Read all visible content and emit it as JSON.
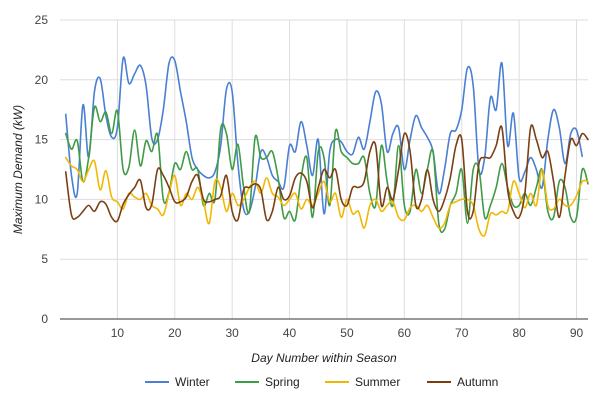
{
  "chart_data": {
    "type": "line",
    "title": "",
    "xlabel": "Day Number within Season",
    "ylabel": "Maximum Demand (kW)",
    "xlim": [
      0,
      92
    ],
    "ylim": [
      0,
      25
    ],
    "xticks": [
      10,
      20,
      30,
      40,
      50,
      60,
      70,
      80,
      90
    ],
    "yticks": [
      0,
      5,
      10,
      15,
      20,
      25
    ],
    "grid": true,
    "legend_position": "bottom",
    "x": [
      1,
      2,
      3,
      4,
      5,
      6,
      7,
      8,
      9,
      10,
      11,
      12,
      13,
      14,
      15,
      16,
      17,
      18,
      19,
      20,
      21,
      22,
      23,
      24,
      25,
      26,
      27,
      28,
      29,
      30,
      31,
      32,
      33,
      34,
      35,
      36,
      37,
      38,
      39,
      40,
      41,
      42,
      43,
      44,
      45,
      46,
      47,
      48,
      49,
      50,
      51,
      52,
      53,
      54,
      55,
      56,
      57,
      58,
      59,
      60,
      61,
      62,
      63,
      64,
      65,
      66,
      67,
      68,
      69,
      70,
      71,
      72,
      73,
      74,
      75,
      76,
      77,
      78,
      79,
      80,
      81,
      82,
      83,
      84,
      85,
      86,
      87,
      88,
      89,
      90,
      91,
      92
    ],
    "series": [
      {
        "name": "Winter",
        "color": "#4a7fd4",
        "values": [
          17.1,
          12.0,
          10.5,
          17.9,
          13.5,
          19.0,
          20.1,
          17.0,
          15.2,
          16.0,
          21.8,
          19.7,
          20.5,
          21.2,
          19.5,
          15.1,
          15.0,
          17.5,
          21.4,
          21.6,
          19.0,
          16.5,
          13.5,
          12.5,
          12.0,
          11.8,
          12.3,
          14.5,
          19.2,
          19.0,
          13.0,
          9.2,
          9.0,
          11.0,
          14.0,
          13.5,
          12.0,
          11.5,
          11.0,
          14.5,
          14.0,
          16.5,
          14.5,
          12.0,
          15.0,
          8.8,
          14.0,
          15.0,
          14.8,
          14.0,
          13.8,
          15.2,
          14.2,
          16.5,
          19.0,
          18.0,
          14.0,
          15.5,
          16.0,
          12.5,
          15.0,
          17.0,
          16.0,
          15.2,
          14.0,
          10.5,
          12.5,
          15.5,
          15.8,
          17.5,
          21.0,
          19.5,
          12.5,
          13.5,
          18.5,
          17.5,
          21.4,
          14.5,
          17.2,
          11.8,
          12.3,
          13.5,
          12.5,
          11.0,
          15.0,
          17.5,
          16.0,
          13.0,
          15.5,
          15.8,
          13.6,
          null
        ]
      },
      {
        "name": "Spring",
        "color": "#3f9b46",
        "values": [
          15.5,
          14.2,
          14.9,
          11.5,
          13.5,
          17.7,
          16.5,
          17.3,
          15.5,
          17.4,
          12.5,
          12.7,
          15.8,
          12.8,
          14.9,
          14.0,
          15.4,
          10.0,
          10.6,
          13.0,
          12.5,
          14.0,
          12.5,
          12.5,
          9.5,
          10.5,
          10.0,
          15.9,
          15.5,
          12.5,
          14.6,
          11.0,
          9.0,
          15.2,
          13.5,
          13.5,
          14.0,
          11.8,
          8.5,
          9.0,
          8.3,
          11.8,
          13.5,
          8.5,
          14.0,
          13.5,
          9.5,
          15.7,
          14.0,
          13.5,
          13.0,
          13.0,
          13.5,
          10.5,
          9.5,
          14.5,
          11.5,
          9.5,
          14.5,
          9.5,
          9.0,
          12.5,
          10.5,
          12.5,
          14.0,
          8.0,
          7.5,
          9.5,
          10.5,
          12.5,
          8.0,
          12.5,
          12.5,
          8.5,
          9.5,
          11.0,
          13.0,
          11.0,
          9.5,
          9.5,
          10.5,
          9.5,
          11.0,
          12.5,
          9.0,
          8.5,
          11.5,
          11.0,
          8.5,
          8.5,
          12.5,
          11.3
        ]
      },
      {
        "name": "Summer",
        "color": "#f2b705",
        "values": [
          13.5,
          12.8,
          12.5,
          11.5,
          12.5,
          13.2,
          10.8,
          12.4,
          10.2,
          9.8,
          9.2,
          10.5,
          10.2,
          10.0,
          10.5,
          9.5,
          9.2,
          8.7,
          10.5,
          12.0,
          9.5,
          10.5,
          10.0,
          11.0,
          9.8,
          8.0,
          11.5,
          11.0,
          9.0,
          10.5,
          9.5,
          10.0,
          11.0,
          11.5,
          10.5,
          11.8,
          10.5,
          10.2,
          9.5,
          10.0,
          10.5,
          9.2,
          10.0,
          9.5,
          10.5,
          11.5,
          9.8,
          10.5,
          8.5,
          10.0,
          8.8,
          9.0,
          7.6,
          9.5,
          10.0,
          9.0,
          9.5,
          9.8,
          8.5,
          8.3,
          9.3,
          9.5,
          9.0,
          9.5,
          8.5,
          7.6,
          8.0,
          9.5,
          9.8,
          10.0,
          10.0,
          9.5,
          7.5,
          7.0,
          8.8,
          8.7,
          9.0,
          9.0,
          11.5,
          10.5,
          9.3,
          10.5,
          9.5,
          12.5,
          9.5,
          9.2,
          10.0,
          9.5,
          9.5,
          10.3,
          11.5,
          11.5
        ]
      },
      {
        "name": "Autumn",
        "color": "#7b3f12",
        "values": [
          12.3,
          8.7,
          8.5,
          9.0,
          9.5,
          9.0,
          9.8,
          9.6,
          8.5,
          8.2,
          9.6,
          10.4,
          11.0,
          11.6,
          9.3,
          9.6,
          12.5,
          12.0,
          11.0,
          9.8,
          9.8,
          10.2,
          11.5,
          12.0,
          10.0,
          9.8,
          10.0,
          10.3,
          12.0,
          9.0,
          8.3,
          10.8,
          11.0,
          11.3,
          10.8,
          8.3,
          9.0,
          11.0,
          10.0,
          10.3,
          11.8,
          12.2,
          11.5,
          9.3,
          11.0,
          12.5,
          11.8,
          12.5,
          10.0,
          9.5,
          11.0,
          11.0,
          11.5,
          14.0,
          14.5,
          9.5,
          11.0,
          10.0,
          12.5,
          15.5,
          14.0,
          9.5,
          10.0,
          12.5,
          10.0,
          9.0,
          10.0,
          11.8,
          14.5,
          15.0,
          9.0,
          9.0,
          13.0,
          13.5,
          13.5,
          14.5,
          16.0,
          10.8,
          9.0,
          8.5,
          10.5,
          16.0,
          15.0,
          13.5,
          14.0,
          11.5,
          8.5,
          12.0,
          15.0,
          14.5,
          15.5,
          15.0
        ]
      }
    ]
  }
}
